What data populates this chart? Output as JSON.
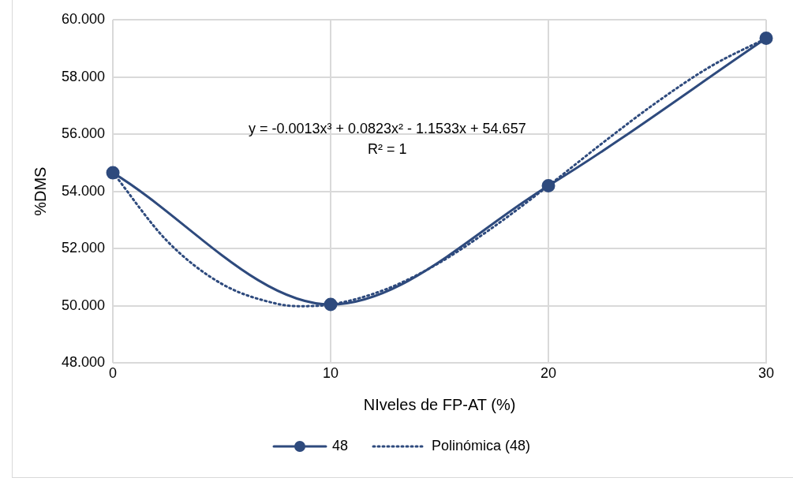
{
  "chart_data": {
    "type": "line",
    "xlabel": "NIveles de FP-AT (%)",
    "ylabel": "%DMS",
    "x": [
      0,
      10,
      20,
      30
    ],
    "series": [
      {
        "name": "48",
        "color": "#2e4a7d",
        "values": [
          54.65,
          50.05,
          54.2,
          59.35
        ],
        "marker": "circle",
        "line_style": "solid"
      },
      {
        "name": "Polinómica (48)",
        "color": "#2e4a7d",
        "type": "line",
        "x": [
          0,
          2.5,
          5,
          7.5,
          8.5,
          10,
          12.5,
          15,
          17.5,
          20,
          22.5,
          25,
          27.5,
          30
        ],
        "values": [
          54.66,
          52.26,
          50.77,
          50.08,
          49.99,
          50.05,
          50.57,
          51.51,
          52.77,
          54.2,
          55.7,
          57.13,
          58.39,
          59.35
        ],
        "marker": "none",
        "line_style": "dotted"
      }
    ],
    "xlim": [
      0,
      30
    ],
    "xticks": [
      0,
      10,
      20,
      30
    ],
    "ylim": [
      48,
      60
    ],
    "yticks": [
      {
        "value": 48,
        "label": "48.000"
      },
      {
        "value": 50,
        "label": "50.000"
      },
      {
        "value": 52,
        "label": "52.000"
      },
      {
        "value": 54,
        "label": "54.000"
      },
      {
        "value": 56,
        "label": "56.000"
      },
      {
        "value": 58,
        "label": "58.000"
      },
      {
        "value": 60,
        "label": "60.000"
      }
    ],
    "annotations": [
      "y = -0.0013x³ + 0.0823x² - 1.1533x + 54.657",
      "R² = 1"
    ],
    "grid": true,
    "legend": "bottom"
  }
}
